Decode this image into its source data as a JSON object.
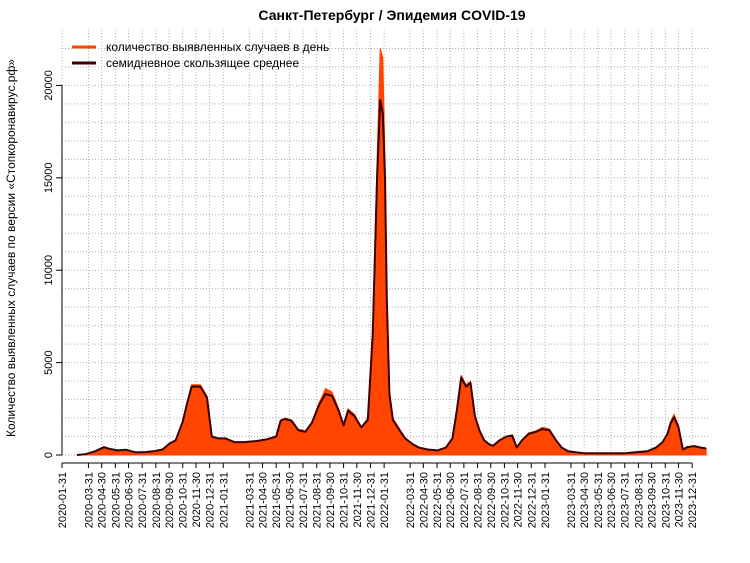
{
  "chart_data": {
    "type": "area",
    "title": "Санкт-Петербург / Эпидемия COVID-19",
    "xlabel": "",
    "ylabel": "Количество выявленных случаев по версии «Стопкоронавирус.рф»",
    "x_ticks": [
      "2020-01-31",
      "2020-03-31",
      "2020-04-30",
      "2020-05-31",
      "2020-06-30",
      "2020-07-31",
      "2020-08-31",
      "2020-09-30",
      "2020-10-31",
      "2020-11-30",
      "2020-12-31",
      "2021-01-31",
      "2021-03-31",
      "2021-04-30",
      "2021-05-31",
      "2021-06-30",
      "2021-07-31",
      "2021-08-31",
      "2021-09-30",
      "2021-10-31",
      "2021-11-30",
      "2021-12-31",
      "2022-01-31",
      "2022-03-31",
      "2022-04-30",
      "2022-05-31",
      "2022-06-30",
      "2022-07-31",
      "2022-08-31",
      "2022-09-30",
      "2022-10-31",
      "2022-11-30",
      "2022-12-31",
      "2023-01-31",
      "2023-03-31",
      "2023-04-30",
      "2023-05-31",
      "2023-06-30",
      "2023-07-31",
      "2023-08-31",
      "2023-09-30",
      "2023-10-31",
      "2023-11-30",
      "2023-12-31"
    ],
    "y_ticks": [
      "0",
      "5000",
      "10000",
      "15000",
      "20000"
    ],
    "ylim": [
      0,
      23000
    ],
    "xlim": [
      "2020-01-31",
      "2024-02-05"
    ],
    "grid": true,
    "legend_position": "top-left",
    "colors": {
      "daily": "#ff4500",
      "average": "#3a0000"
    },
    "series": [
      {
        "name": "количество выявленных случаев в день",
        "x": [
          "2020-03-05",
          "2020-03-25",
          "2020-04-15",
          "2020-05-05",
          "2020-05-18",
          "2020-06-05",
          "2020-06-25",
          "2020-07-15",
          "2020-08-05",
          "2020-08-25",
          "2020-09-15",
          "2020-09-30",
          "2020-10-15",
          "2020-10-31",
          "2020-11-10",
          "2020-11-20",
          "2020-12-10",
          "2020-12-25",
          "2021-01-05",
          "2021-01-20",
          "2021-02-05",
          "2021-02-25",
          "2021-03-20",
          "2021-04-15",
          "2021-05-10",
          "2021-05-31",
          "2021-06-10",
          "2021-06-20",
          "2021-07-05",
          "2021-07-20",
          "2021-08-05",
          "2021-08-20",
          "2021-09-05",
          "2021-09-20",
          "2021-10-05",
          "2021-10-20",
          "2021-10-31",
          "2021-11-10",
          "2021-11-25",
          "2021-12-10",
          "2021-12-25",
          "2022-01-05",
          "2022-01-15",
          "2022-01-22",
          "2022-01-28",
          "2022-02-02",
          "2022-02-06",
          "2022-02-12",
          "2022-02-20",
          "2022-03-05",
          "2022-03-20",
          "2022-04-05",
          "2022-04-20",
          "2022-05-10",
          "2022-06-01",
          "2022-06-20",
          "2022-07-05",
          "2022-07-15",
          "2022-07-25",
          "2022-08-05",
          "2022-08-15",
          "2022-08-25",
          "2022-09-05",
          "2022-09-15",
          "2022-09-25",
          "2022-10-05",
          "2022-10-20",
          "2022-11-05",
          "2022-11-18",
          "2022-11-28",
          "2022-12-10",
          "2022-12-25",
          "2023-01-10",
          "2023-01-25",
          "2023-02-10",
          "2023-02-25",
          "2023-03-10",
          "2023-03-25",
          "2023-04-10",
          "2023-05-01",
          "2023-06-01",
          "2023-07-01",
          "2023-08-01",
          "2023-08-25",
          "2023-09-20",
          "2023-10-10",
          "2023-10-25",
          "2023-11-05",
          "2023-11-12",
          "2023-11-20",
          "2023-11-30",
          "2023-12-10",
          "2023-12-20",
          "2024-01-05",
          "2024-01-20",
          "2024-02-01"
        ],
        "values": [
          0,
          50,
          200,
          450,
          350,
          250,
          300,
          150,
          150,
          200,
          300,
          600,
          800,
          1800,
          2800,
          3800,
          3800,
          3200,
          1000,
          900,
          900,
          700,
          700,
          750,
          850,
          1000,
          1900,
          2000,
          1900,
          1400,
          1300,
          1800,
          2800,
          3600,
          3400,
          2500,
          1600,
          2500,
          2200,
          1500,
          2000,
          7000,
          16000,
          22000,
          21500,
          16000,
          9000,
          3500,
          2000,
          1500,
          900,
          600,
          400,
          300,
          250,
          400,
          900,
          2500,
          4300,
          3800,
          4000,
          2200,
          1300,
          800,
          600,
          500,
          800,
          1000,
          1100,
          400,
          800,
          1200,
          1300,
          1500,
          1400,
          800,
          400,
          200,
          150,
          100,
          100,
          100,
          100,
          150,
          200,
          400,
          700,
          1200,
          1800,
          2200,
          1600,
          300,
          450,
          500,
          400,
          350
        ]
      },
      {
        "name": "семидневное скользящее среднее",
        "x": [
          "2020-03-05",
          "2020-03-25",
          "2020-04-15",
          "2020-05-05",
          "2020-05-18",
          "2020-06-05",
          "2020-06-25",
          "2020-07-15",
          "2020-08-05",
          "2020-08-25",
          "2020-09-15",
          "2020-09-30",
          "2020-10-15",
          "2020-10-31",
          "2020-11-10",
          "2020-11-20",
          "2020-12-10",
          "2020-12-25",
          "2021-01-05",
          "2021-01-20",
          "2021-02-05",
          "2021-02-25",
          "2021-03-20",
          "2021-04-15",
          "2021-05-10",
          "2021-05-31",
          "2021-06-10",
          "2021-06-20",
          "2021-07-05",
          "2021-07-20",
          "2021-08-05",
          "2021-08-20",
          "2021-09-05",
          "2021-09-20",
          "2021-10-05",
          "2021-10-20",
          "2021-10-31",
          "2021-11-10",
          "2021-11-25",
          "2021-12-10",
          "2021-12-25",
          "2022-01-05",
          "2022-01-15",
          "2022-01-22",
          "2022-01-28",
          "2022-02-02",
          "2022-02-06",
          "2022-02-12",
          "2022-02-20",
          "2022-03-05",
          "2022-03-20",
          "2022-04-05",
          "2022-04-20",
          "2022-05-10",
          "2022-06-01",
          "2022-06-20",
          "2022-07-05",
          "2022-07-15",
          "2022-07-25",
          "2022-08-05",
          "2022-08-15",
          "2022-08-25",
          "2022-09-05",
          "2022-09-15",
          "2022-09-25",
          "2022-10-05",
          "2022-10-20",
          "2022-11-05",
          "2022-11-18",
          "2022-11-28",
          "2022-12-10",
          "2022-12-25",
          "2023-01-10",
          "2023-01-25",
          "2023-02-10",
          "2023-02-25",
          "2023-03-10",
          "2023-03-25",
          "2023-04-10",
          "2023-05-01",
          "2023-06-01",
          "2023-07-01",
          "2023-08-01",
          "2023-08-25",
          "2023-09-20",
          "2023-10-10",
          "2023-10-25",
          "2023-11-05",
          "2023-11-12",
          "2023-11-20",
          "2023-11-30",
          "2023-12-10",
          "2023-12-20",
          "2024-01-05",
          "2024-01-20",
          "2024-02-01"
        ],
        "values": [
          0,
          50,
          200,
          420,
          330,
          250,
          280,
          150,
          150,
          200,
          300,
          600,
          800,
          1800,
          2800,
          3700,
          3700,
          3100,
          1000,
          900,
          900,
          700,
          700,
          750,
          850,
          1000,
          1850,
          1950,
          1850,
          1350,
          1250,
          1750,
          2700,
          3300,
          3200,
          2400,
          1600,
          2400,
          2100,
          1500,
          1900,
          6500,
          15000,
          19200,
          18500,
          15000,
          8500,
          3300,
          1900,
          1400,
          900,
          600,
          400,
          300,
          250,
          400,
          900,
          2400,
          4200,
          3700,
          3900,
          2100,
          1300,
          800,
          600,
          500,
          800,
          1000,
          1050,
          400,
          800,
          1150,
          1250,
          1400,
          1350,
          800,
          400,
          200,
          150,
          100,
          100,
          100,
          100,
          150,
          200,
          400,
          700,
          1150,
          1700,
          2050,
          1500,
          300,
          430,
          480,
          400,
          350
        ]
      }
    ]
  }
}
